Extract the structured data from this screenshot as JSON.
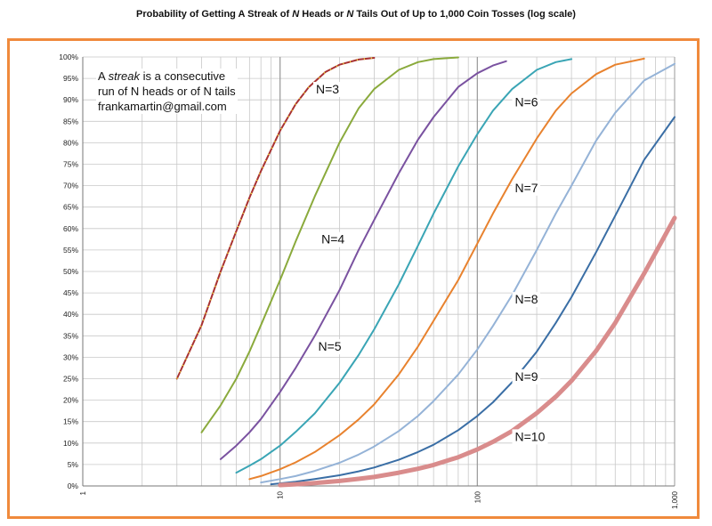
{
  "chart_data": {
    "type": "line",
    "title": {
      "pre": "Probability of Getting A Streak of ",
      "n1": "N",
      "mid": " Heads or ",
      "n2": "N",
      "post": " Tails Out of Up to 1,000 Coin Tosses (log scale)"
    },
    "note": {
      "line1_pre": "A ",
      "line1_em": "streak",
      "line1_post": " is a consecutive",
      "line2": "run of N heads or of N tails",
      "line3": "frankamartin@gmail.com"
    },
    "x_scale": "log",
    "xlim": [
      1,
      1000
    ],
    "ylim": [
      0,
      100
    ],
    "y_unit": "%",
    "grid": true,
    "x_tick_labels": [
      {
        "value": 1,
        "label": "1"
      },
      {
        "value": 10,
        "label": "10"
      },
      {
        "value": 100,
        "label": "100"
      },
      {
        "value": 1000,
        "label": "1,000"
      }
    ],
    "y_tick_labels": [
      "0%",
      "5%",
      "10%",
      "15%",
      "20%",
      "25%",
      "30%",
      "35%",
      "40%",
      "45%",
      "50%",
      "55%",
      "60%",
      "65%",
      "70%",
      "75%",
      "80%",
      "85%",
      "90%",
      "95%",
      "100%"
    ],
    "series": [
      {
        "name": "N=3",
        "color": "#a83232",
        "label_at": {
          "x": 15.2,
          "y": 91.5
        },
        "points": [
          [
            3,
            25
          ],
          [
            4,
            37.5
          ],
          [
            5,
            50
          ],
          [
            6,
            59.4
          ],
          [
            7,
            67.2
          ],
          [
            8,
            73.4
          ],
          [
            10,
            82.8
          ],
          [
            12,
            89
          ],
          [
            14,
            93
          ],
          [
            17,
            96.5
          ],
          [
            20,
            98.2
          ],
          [
            25,
            99.4
          ],
          [
            30,
            99.8
          ]
        ]
      },
      {
        "name": "N=4",
        "color": "#8aaa3c",
        "label_at": {
          "x": 16.2,
          "y": 56.5
        },
        "points": [
          [
            4,
            12.5
          ],
          [
            5,
            18.8
          ],
          [
            6,
            25
          ],
          [
            7,
            31.3
          ],
          [
            8,
            37.5
          ],
          [
            10,
            48
          ],
          [
            12,
            57
          ],
          [
            15,
            67.5
          ],
          [
            20,
            80
          ],
          [
            25,
            88
          ],
          [
            30,
            92.5
          ],
          [
            40,
            97
          ],
          [
            50,
            98.8
          ],
          [
            60,
            99.5
          ],
          [
            80,
            99.9
          ]
        ]
      },
      {
        "name": "N=5",
        "color": "#7a52a0",
        "label_at": {
          "x": 15.6,
          "y": 31.5
        },
        "points": [
          [
            5,
            6.25
          ],
          [
            6,
            9.4
          ],
          [
            7,
            12.5
          ],
          [
            8,
            15.6
          ],
          [
            10,
            21.9
          ],
          [
            12,
            27.5
          ],
          [
            15,
            35
          ],
          [
            20,
            45.6
          ],
          [
            25,
            55
          ],
          [
            30,
            62
          ],
          [
            40,
            72.9
          ],
          [
            50,
            80.7
          ],
          [
            60,
            86
          ],
          [
            80,
            93
          ],
          [
            100,
            96.2
          ],
          [
            120,
            98
          ],
          [
            140,
            99
          ]
        ]
      },
      {
        "name": "N=6",
        "color": "#3aa5b5",
        "label_at": {
          "x": 155,
          "y": 88.5
        },
        "points": [
          [
            6,
            3.1
          ],
          [
            7,
            4.7
          ],
          [
            8,
            6.25
          ],
          [
            10,
            9.4
          ],
          [
            12,
            12.6
          ],
          [
            15,
            16.9
          ],
          [
            20,
            24
          ],
          [
            25,
            30.5
          ],
          [
            30,
            36.5
          ],
          [
            40,
            47
          ],
          [
            50,
            56
          ],
          [
            60,
            63.5
          ],
          [
            80,
            74.5
          ],
          [
            100,
            82
          ],
          [
            120,
            87.5
          ],
          [
            150,
            92.5
          ],
          [
            200,
            97
          ],
          [
            250,
            98.8
          ],
          [
            300,
            99.5
          ]
        ]
      },
      {
        "name": "N=7",
        "color": "#e8822e",
        "label_at": {
          "x": 155,
          "y": 68.5
        },
        "points": [
          [
            7,
            1.6
          ],
          [
            8,
            2.3
          ],
          [
            10,
            3.9
          ],
          [
            12,
            5.5
          ],
          [
            15,
            7.9
          ],
          [
            20,
            11.8
          ],
          [
            25,
            15.5
          ],
          [
            30,
            19
          ],
          [
            40,
            26
          ],
          [
            50,
            32.5
          ],
          [
            60,
            38.5
          ],
          [
            80,
            48
          ],
          [
            100,
            56.5
          ],
          [
            120,
            63.5
          ],
          [
            150,
            71.5
          ],
          [
            200,
            81
          ],
          [
            250,
            87.5
          ],
          [
            300,
            91.5
          ],
          [
            400,
            96
          ],
          [
            500,
            98.2
          ],
          [
            700,
            99.6
          ]
        ]
      },
      {
        "name": "N=8",
        "color": "#95b3d7",
        "label_at": {
          "x": 155,
          "y": 42.5
        },
        "points": [
          [
            8,
            0.8
          ],
          [
            10,
            1.6
          ],
          [
            12,
            2.3
          ],
          [
            15,
            3.5
          ],
          [
            20,
            5.4
          ],
          [
            25,
            7.3
          ],
          [
            30,
            9.2
          ],
          [
            40,
            12.8
          ],
          [
            50,
            16.3
          ],
          [
            60,
            19.8
          ],
          [
            80,
            26
          ],
          [
            100,
            31.8
          ],
          [
            120,
            37.3
          ],
          [
            150,
            44.5
          ],
          [
            200,
            55
          ],
          [
            250,
            63.5
          ],
          [
            300,
            70
          ],
          [
            400,
            80.5
          ],
          [
            500,
            87
          ],
          [
            700,
            94.5
          ],
          [
            1000,
            98.4
          ]
        ]
      },
      {
        "name": "N=9",
        "color": "#3a6ea5",
        "label_at": {
          "x": 155,
          "y": 24.5
        },
        "points": [
          [
            9,
            0.4
          ],
          [
            10,
            0.6
          ],
          [
            12,
            0.98
          ],
          [
            15,
            1.6
          ],
          [
            20,
            2.5
          ],
          [
            25,
            3.4
          ],
          [
            30,
            4.3
          ],
          [
            40,
            6.1
          ],
          [
            50,
            7.9
          ],
          [
            60,
            9.6
          ],
          [
            80,
            13
          ],
          [
            100,
            16.3
          ],
          [
            120,
            19.5
          ],
          [
            150,
            24.2
          ],
          [
            200,
            31.3
          ],
          [
            250,
            38
          ],
          [
            300,
            44
          ],
          [
            400,
            54.5
          ],
          [
            500,
            63
          ],
          [
            700,
            76
          ],
          [
            1000,
            86
          ]
        ]
      },
      {
        "name": "N=10",
        "color": "#d98c8c",
        "label_at": {
          "x": 155,
          "y": 10.5
        },
        "points": [
          [
            10,
            0.2
          ],
          [
            12,
            0.39
          ],
          [
            15,
            0.68
          ],
          [
            20,
            1.17
          ],
          [
            25,
            1.66
          ],
          [
            30,
            2.1
          ],
          [
            40,
            3.1
          ],
          [
            50,
            4
          ],
          [
            60,
            4.9
          ],
          [
            80,
            6.7
          ],
          [
            100,
            8.5
          ],
          [
            120,
            10.3
          ],
          [
            150,
            12.8
          ],
          [
            200,
            17
          ],
          [
            250,
            20.8
          ],
          [
            300,
            24.5
          ],
          [
            400,
            31.5
          ],
          [
            500,
            38
          ],
          [
            700,
            49.5
          ],
          [
            1000,
            62.5
          ]
        ]
      }
    ]
  }
}
